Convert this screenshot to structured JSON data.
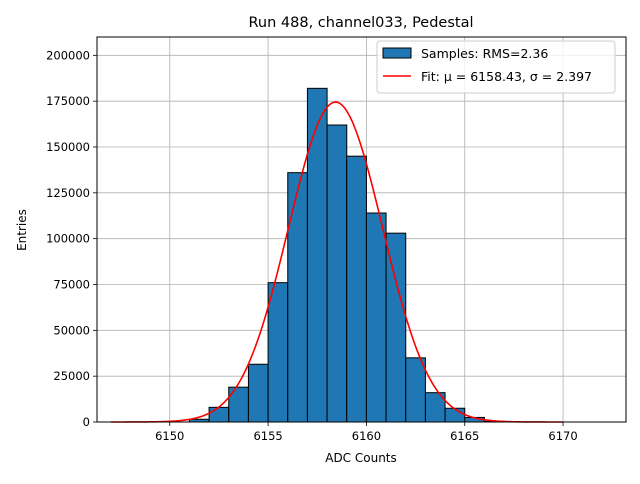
{
  "chart_data": {
    "type": "bar",
    "title": "Run 488, channel033, Pedestal",
    "xlabel": "ADC Counts",
    "ylabel": "Entries",
    "xlim": [
      6146.3,
      6173.2
    ],
    "ylim": [
      0,
      210000
    ],
    "xticks": [
      6150,
      6155,
      6160,
      6165,
      6170
    ],
    "yticks": [
      0,
      25000,
      50000,
      75000,
      100000,
      125000,
      150000,
      175000,
      200000
    ],
    "grid": true,
    "legend_position": "top-right",
    "bin_width": 1,
    "histogram": {
      "name": "Samples: RMS=2.36",
      "color": "#1f77b4",
      "edge_color": "#000000",
      "bins": [
        {
          "left": 6151,
          "count": 1500
        },
        {
          "left": 6152,
          "count": 8000
        },
        {
          "left": 6153,
          "count": 19000
        },
        {
          "left": 6154,
          "count": 31500
        },
        {
          "left": 6155,
          "count": 76000
        },
        {
          "left": 6156,
          "count": 136000
        },
        {
          "left": 6157,
          "count": 182000
        },
        {
          "left": 6158,
          "count": 162000
        },
        {
          "left": 6159,
          "count": 145000
        },
        {
          "left": 6160,
          "count": 114000
        },
        {
          "left": 6161,
          "count": 103000
        },
        {
          "left": 6162,
          "count": 35000
        },
        {
          "left": 6163,
          "count": 16000
        },
        {
          "left": 6164,
          "count": 7500
        },
        {
          "left": 6165,
          "count": 2500
        },
        {
          "left": 6166,
          "count": 400
        }
      ]
    },
    "fit": {
      "name": "Fit: μ = 6158.43, σ = 2.397",
      "type": "gaussian",
      "mu": 6158.43,
      "sigma": 2.397,
      "amplitude": 174500,
      "x_range": [
        6147,
        6170
      ],
      "color": "#ff0000"
    }
  }
}
